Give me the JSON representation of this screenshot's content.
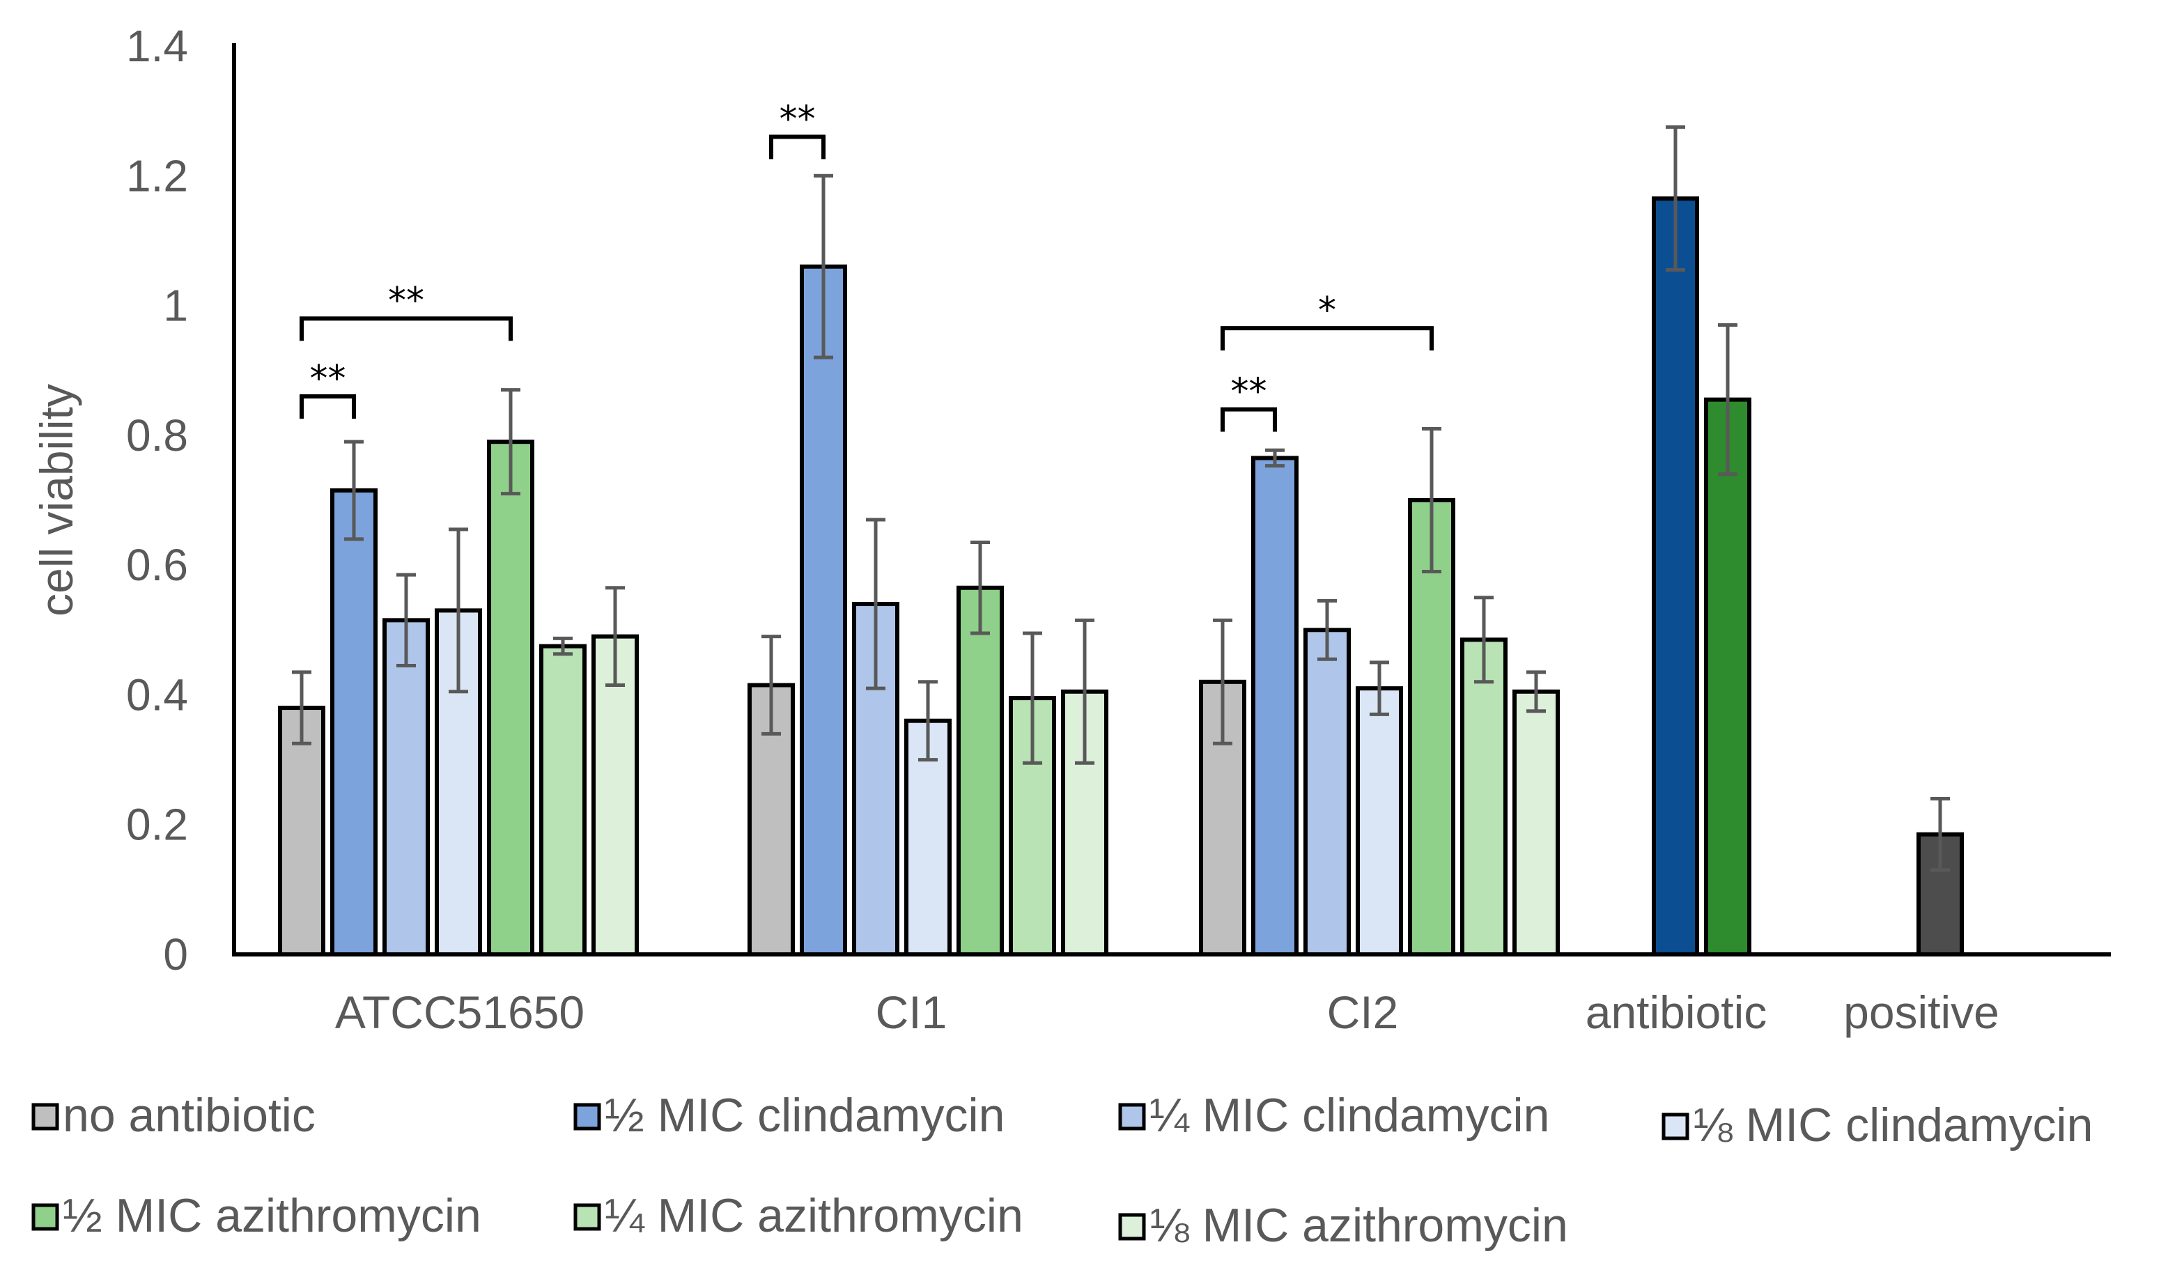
{
  "chart_data": {
    "type": "bar",
    "title": "",
    "xlabel": "",
    "ylabel": "cell viability",
    "ylim": [
      0,
      1.4
    ],
    "yticks": [
      "0",
      "0.2",
      "0.4",
      "0.6",
      "0.8",
      "1",
      "1.2",
      "1.4"
    ],
    "grid": false,
    "legend_position": "bottom",
    "series": [
      {
        "name": "no antibiotic",
        "color": "#BFBFBF"
      },
      {
        "name": "½ MIC clindamycin",
        "color": "#7DA3DC"
      },
      {
        "name": "¼ MIC clindamycin",
        "color": "#AFC6EA"
      },
      {
        "name": "⅛ MIC clindamycin",
        "color": "#DAE5F5"
      },
      {
        "name": "½ MIC azithromycin",
        "color": "#8FD08A"
      },
      {
        "name": "¼ MIC azithromycin",
        "color": "#B9E2B5"
      },
      {
        "name": "⅛ MIC azithromycin",
        "color": "#DCF0DA"
      }
    ],
    "groups": [
      {
        "label": "ATCC51650",
        "bars": [
          {
            "series": 0,
            "value": 0.38,
            "err": 0.055
          },
          {
            "series": 1,
            "value": 0.715,
            "err": 0.075
          },
          {
            "series": 2,
            "value": 0.515,
            "err": 0.07
          },
          {
            "series": 3,
            "value": 0.53,
            "err": 0.125
          },
          {
            "series": 4,
            "value": 0.79,
            "err": 0.08
          },
          {
            "series": 5,
            "value": 0.475,
            "err": 0.012
          },
          {
            "series": 6,
            "value": 0.49,
            "err": 0.075
          }
        ]
      },
      {
        "label": "CI1",
        "bars": [
          {
            "series": 0,
            "value": 0.415,
            "err": 0.075
          },
          {
            "series": 1,
            "value": 1.06,
            "err": 0.14
          },
          {
            "series": 2,
            "value": 0.54,
            "err": 0.13
          },
          {
            "series": 3,
            "value": 0.36,
            "err": 0.06
          },
          {
            "series": 4,
            "value": 0.565,
            "err": 0.07
          },
          {
            "series": 5,
            "value": 0.395,
            "err": 0.1
          },
          {
            "series": 6,
            "value": 0.405,
            "err": 0.11
          }
        ]
      },
      {
        "label": "CI2",
        "bars": [
          {
            "series": 0,
            "value": 0.42,
            "err": 0.095
          },
          {
            "series": 1,
            "value": 0.765,
            "err": 0.012
          },
          {
            "series": 2,
            "value": 0.5,
            "err": 0.045
          },
          {
            "series": 3,
            "value": 0.41,
            "err": 0.04
          },
          {
            "series": 4,
            "value": 0.7,
            "err": 0.11
          },
          {
            "series": 5,
            "value": 0.485,
            "err": 0.065
          },
          {
            "series": 6,
            "value": 0.405,
            "err": 0.03
          }
        ]
      },
      {
        "label": "antibiotic",
        "bars": [
          {
            "value": 1.165,
            "err": 0.11,
            "color": "#0B4E92"
          },
          {
            "value": 0.855,
            "err": 0.115,
            "color": "#2E8B2E"
          }
        ]
      },
      {
        "label": "positive",
        "bars": [
          {
            "value": 0.185,
            "err": 0.055,
            "color": "#4D4D4D"
          }
        ]
      }
    ],
    "annotations": [
      {
        "group": 0,
        "from_bar": 0,
        "to_bar": 1,
        "y": 0.86,
        "text": "**"
      },
      {
        "group": 0,
        "from_bar": 0,
        "to_bar": 4,
        "y": 0.98,
        "text": "**"
      },
      {
        "group": 1,
        "from_bar": 0,
        "to_bar": 1,
        "y": 1.26,
        "text": "**"
      },
      {
        "group": 2,
        "from_bar": 0,
        "to_bar": 1,
        "y": 0.84,
        "text": "**"
      },
      {
        "group": 2,
        "from_bar": 0,
        "to_bar": 4,
        "y": 0.965,
        "text": "*"
      }
    ]
  }
}
